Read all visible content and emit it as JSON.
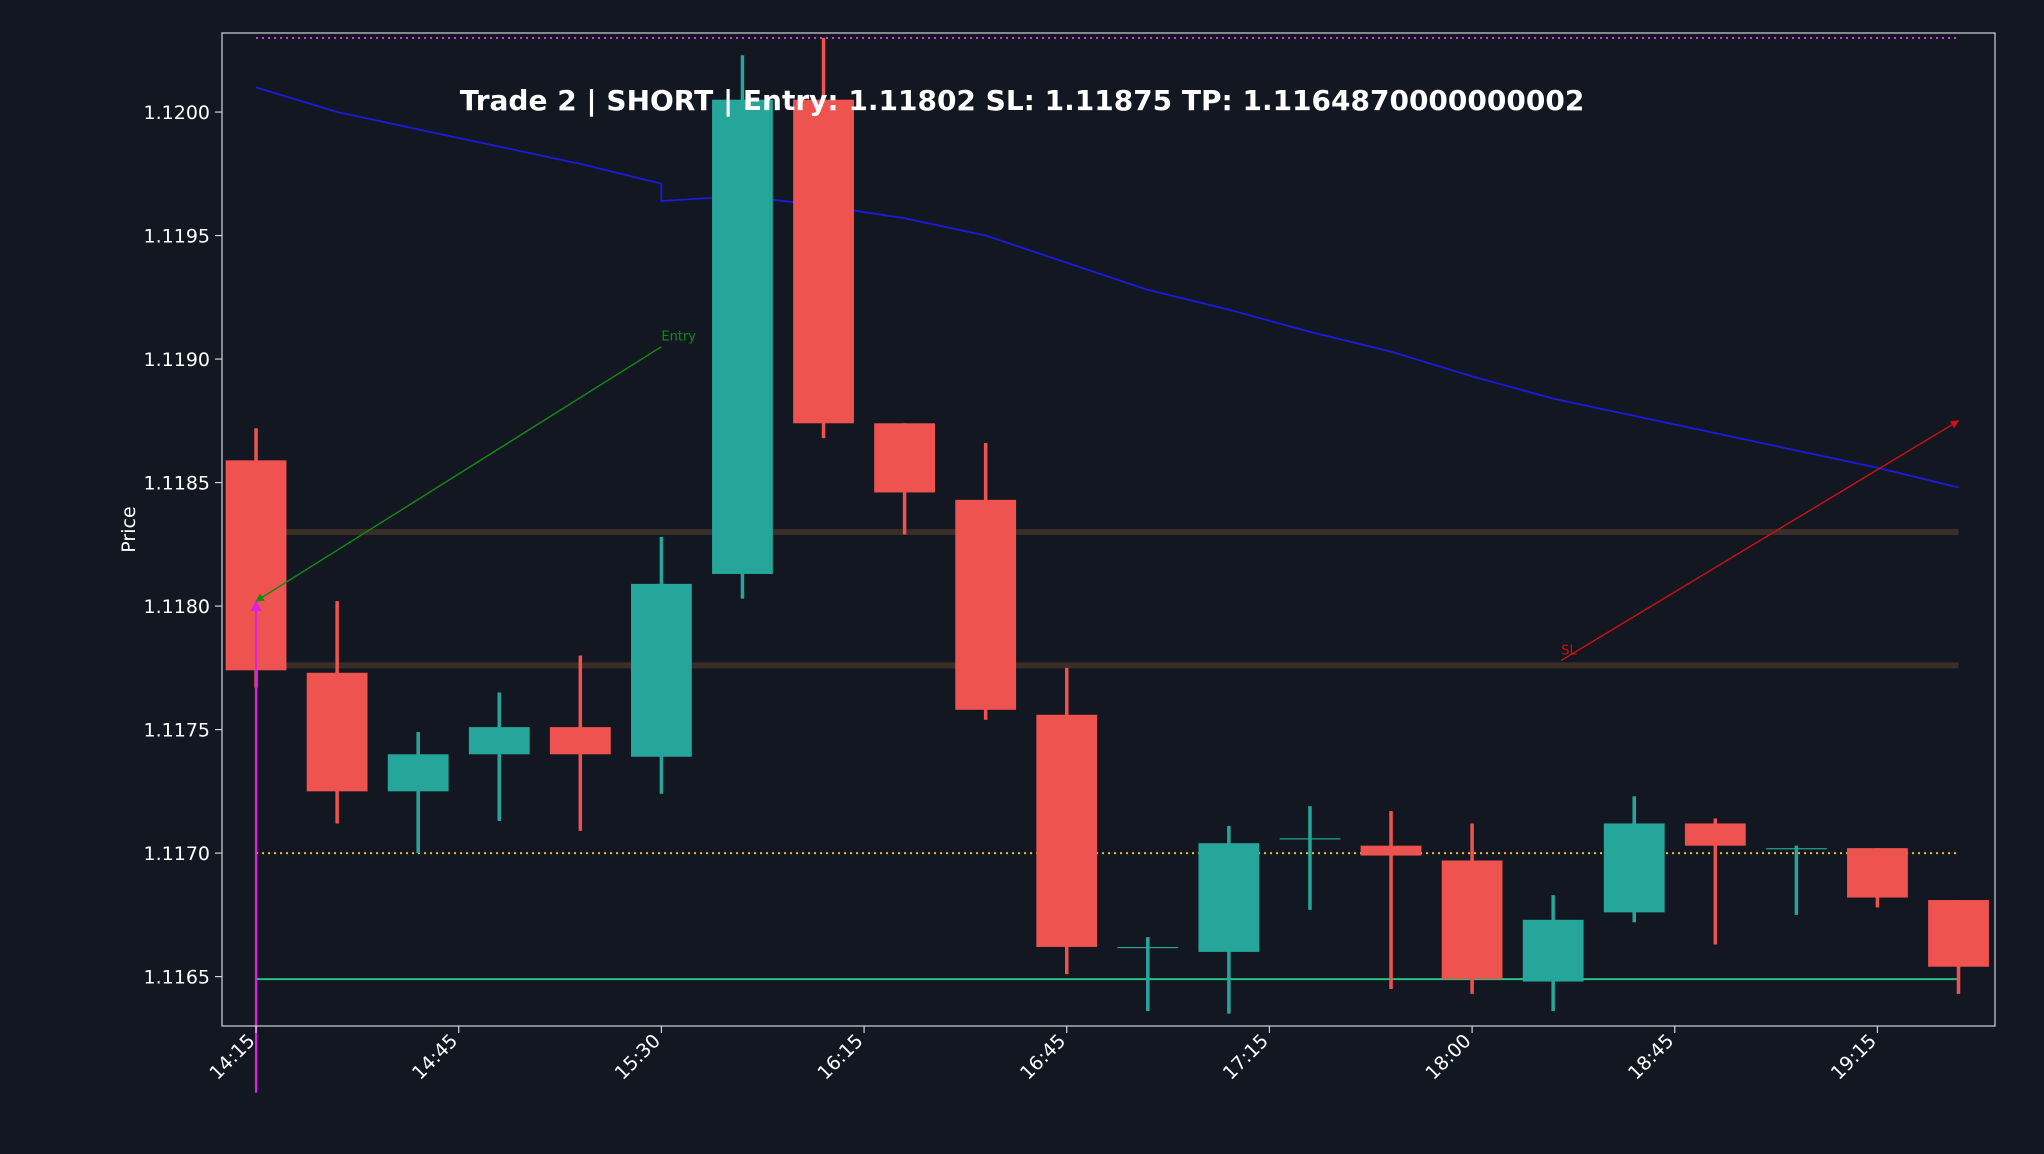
{
  "chart_data": {
    "type": "candlestick",
    "title": "Trade 2 | SHORT | Entry: 1.11802 SL: 1.11875 TP: 1.1164870000000002",
    "xlabel": "",
    "ylabel": "Price",
    "x_ticks": [
      "14:15",
      "14:45",
      "15:30",
      "16:15",
      "16:45",
      "17:15",
      "18:00",
      "18:45",
      "19:15"
    ],
    "x_tick_index": [
      0,
      2.5,
      5,
      7.5,
      10,
      12.5,
      15,
      17.5,
      20
    ],
    "y_ticks": [
      1.1165,
      1.117,
      1.1175,
      1.118,
      1.1185,
      1.119,
      1.1195,
      1.12
    ],
    "ylim": [
      1.1163,
      1.12032
    ],
    "xlim": [
      -0.42,
      21.45
    ],
    "grid": false,
    "colors": {
      "background": "#131722",
      "axes_border": "#d1d4dc",
      "text": "#ffffff",
      "up": "#26a69a",
      "down": "#ef5350",
      "ema": "#1a1ae0",
      "entry_arrow": "#138a13",
      "sl_arrow": "#d01010",
      "entry_marker": "#e020e0",
      "top_line": "#cc44cc",
      "mid_line": "#f0c030",
      "tp_line": "#26c281",
      "zone_line": "#3a2e28"
    },
    "candles": [
      {
        "o": 1.11859,
        "h": 1.11872,
        "l": 1.11767,
        "c": 1.11774
      },
      {
        "o": 1.11773,
        "h": 1.11802,
        "l": 1.11712,
        "c": 1.11725
      },
      {
        "o": 1.11725,
        "h": 1.11749,
        "l": 1.117,
        "c": 1.1174
      },
      {
        "o": 1.1174,
        "h": 1.11765,
        "l": 1.11713,
        "c": 1.11751
      },
      {
        "o": 1.11751,
        "h": 1.1178,
        "l": 1.11709,
        "c": 1.1174
      },
      {
        "o": 1.11739,
        "h": 1.11828,
        "l": 1.11724,
        "c": 1.11809
      },
      {
        "o": 1.11813,
        "h": 1.12023,
        "l": 1.11803,
        "c": 1.12005
      },
      {
        "o": 1.12005,
        "h": 1.1203,
        "l": 1.11868,
        "c": 1.11874
      },
      {
        "o": 1.11874,
        "h": 1.11874,
        "l": 1.11829,
        "c": 1.11846
      },
      {
        "o": 1.11843,
        "h": 1.11866,
        "l": 1.11754,
        "c": 1.11758
      },
      {
        "o": 1.11756,
        "h": 1.11775,
        "l": 1.11651,
        "c": 1.11662
      },
      {
        "o": 1.11662,
        "h": 1.11666,
        "l": 1.11636,
        "c": 1.11662
      },
      {
        "o": 1.1166,
        "h": 1.11711,
        "l": 1.11635,
        "c": 1.11704
      },
      {
        "o": 1.11706,
        "h": 1.11719,
        "l": 1.11677,
        "c": 1.11706
      },
      {
        "o": 1.11703,
        "h": 1.11717,
        "l": 1.11645,
        "c": 1.11699
      },
      {
        "o": 1.11697,
        "h": 1.11712,
        "l": 1.11643,
        "c": 1.11649
      },
      {
        "o": 1.11648,
        "h": 1.11683,
        "l": 1.11636,
        "c": 1.11673
      },
      {
        "o": 1.11676,
        "h": 1.11723,
        "l": 1.11672,
        "c": 1.11712
      },
      {
        "o": 1.11712,
        "h": 1.11714,
        "l": 1.11663,
        "c": 1.11703
      },
      {
        "o": 1.11702,
        "h": 1.11703,
        "l": 1.11675,
        "c": 1.11702
      },
      {
        "o": 1.11702,
        "h": 1.11702,
        "l": 1.11678,
        "c": 1.11682
      },
      {
        "o": 1.11681,
        "h": 1.11681,
        "l": 1.11643,
        "c": 1.11654
      }
    ],
    "ema": [
      1.1201,
      1.12,
      1.11993,
      1.11986,
      1.11979,
      1.11971,
      1.11964,
      1.11966,
      1.11962,
      1.11957,
      1.1195,
      1.11939,
      1.11928,
      1.1192,
      1.11911,
      1.11903,
      1.11893,
      1.11884,
      1.11877,
      1.1187,
      1.11863,
      1.11856,
      1.11848
    ],
    "ema_x": [
      0,
      1,
      2,
      3,
      4,
      5,
      5,
      6,
      7,
      8,
      9,
      10,
      11,
      12,
      13,
      14,
      15,
      16,
      17,
      18,
      19,
      20,
      21
    ],
    "hlines": [
      {
        "name": "top-dotted",
        "y": 1.1203,
        "style": "dotted",
        "color": "#cc44cc"
      },
      {
        "name": "mid-dotted",
        "y": 1.117,
        "style": "dotted",
        "color": "#f0c030"
      },
      {
        "name": "tp-line",
        "y": 1.11649,
        "style": "solid",
        "color": "#26c281"
      },
      {
        "name": "zone-upper",
        "y": 1.1183,
        "style": "solid",
        "color": "#3a2e28"
      },
      {
        "name": "zone-lower",
        "y": 1.11776,
        "style": "solid",
        "color": "#3a2e28"
      }
    ],
    "annotations": [
      {
        "name": "entry",
        "text": "Entry",
        "text_x": 5,
        "text_y": 1.11905,
        "arrow_x": 0,
        "arrow_y": 1.11802,
        "color": "#138a13"
      },
      {
        "name": "sl",
        "text": "SL",
        "text_x": 16.1,
        "text_y": 1.11778,
        "arrow_x": 21,
        "arrow_y": 1.11875,
        "color": "#d01010"
      }
    ],
    "entry_marker": {
      "x": 0,
      "y_top": 1.11802,
      "y_bottom": 1.11603,
      "color": "#e020e0"
    }
  }
}
